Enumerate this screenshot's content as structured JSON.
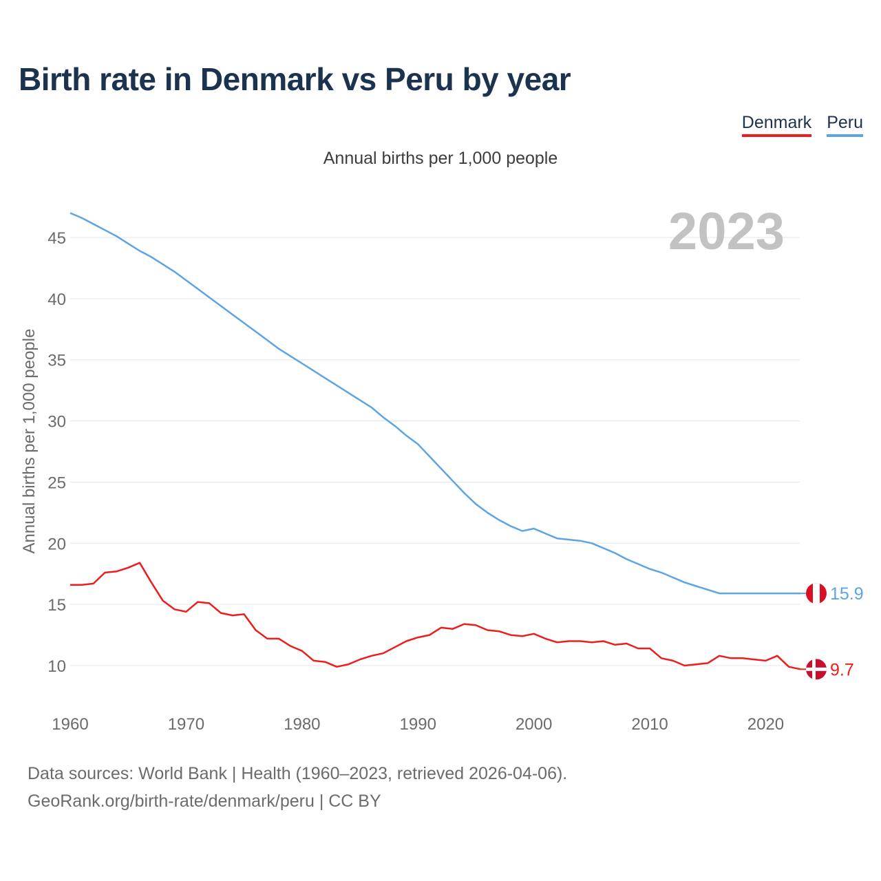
{
  "title": "Birth rate in Denmark vs Peru by year",
  "legend": [
    {
      "label": "Denmark",
      "color": "#ee1c1c"
    },
    {
      "label": "Peru",
      "color": "#5ba4e5"
    }
  ],
  "subtitle": "Annual births per 1,000 people",
  "footer": {
    "line1": "Data sources: World Bank | Health (1960–2023, retrieved 2026-04-06).",
    "line2": "GeoRank.org/birth-rate/denmark/peru | CC BY"
  },
  "chart_data": {
    "type": "line",
    "title": "Birth rate in Denmark vs Peru by year",
    "ylabel": "Annual births per 1,000 people",
    "xlabel": "",
    "current_year_label": "2023",
    "xlim": [
      1960,
      2023
    ],
    "ylim": [
      7,
      48
    ],
    "x_ticks": [
      1960,
      1970,
      1980,
      1990,
      2000,
      2010,
      2020
    ],
    "y_ticks": [
      10,
      15,
      20,
      25,
      30,
      35,
      40,
      45
    ],
    "grid": true,
    "x": [
      1960,
      1961,
      1962,
      1963,
      1964,
      1965,
      1966,
      1967,
      1968,
      1969,
      1970,
      1971,
      1972,
      1973,
      1974,
      1975,
      1976,
      1977,
      1978,
      1979,
      1980,
      1981,
      1982,
      1983,
      1984,
      1985,
      1986,
      1987,
      1988,
      1989,
      1990,
      1991,
      1992,
      1993,
      1994,
      1995,
      1996,
      1997,
      1998,
      1999,
      2000,
      2001,
      2002,
      2003,
      2004,
      2005,
      2006,
      2007,
      2008,
      2009,
      2010,
      2011,
      2012,
      2013,
      2014,
      2015,
      2016,
      2017,
      2018,
      2019,
      2020,
      2021,
      2022,
      2023
    ],
    "series": [
      {
        "name": "Denmark",
        "color": "#ee1c1c",
        "end_label": "9.7",
        "values": [
          16.6,
          16.6,
          16.7,
          17.6,
          17.7,
          18.0,
          18.4,
          16.8,
          15.3,
          14.6,
          14.4,
          15.2,
          15.1,
          14.3,
          14.1,
          14.2,
          12.9,
          12.2,
          12.2,
          11.6,
          11.2,
          10.4,
          10.3,
          9.9,
          10.1,
          10.5,
          10.8,
          11.0,
          11.5,
          12.0,
          12.3,
          12.5,
          13.1,
          13.0,
          13.4,
          13.3,
          12.9,
          12.8,
          12.5,
          12.4,
          12.6,
          12.2,
          11.9,
          12.0,
          12.0,
          11.9,
          12.0,
          11.7,
          11.8,
          11.4,
          11.4,
          10.6,
          10.4,
          10.0,
          10.1,
          10.2,
          10.8,
          10.6,
          10.6,
          10.5,
          10.4,
          10.8,
          9.9,
          9.7
        ]
      },
      {
        "name": "Peru",
        "color": "#5ba4e5",
        "end_label": "15.9",
        "values": [
          47.0,
          46.6,
          46.1,
          45.6,
          45.1,
          44.5,
          43.9,
          43.4,
          42.8,
          42.2,
          41.5,
          40.8,
          40.1,
          39.4,
          38.7,
          38.0,
          37.3,
          36.6,
          35.9,
          35.3,
          34.7,
          34.1,
          33.5,
          32.9,
          32.3,
          31.7,
          31.1,
          30.3,
          29.6,
          28.8,
          28.1,
          27.1,
          26.1,
          25.1,
          24.1,
          23.2,
          22.5,
          21.9,
          21.4,
          21.0,
          21.2,
          20.8,
          20.4,
          20.3,
          20.2,
          20.0,
          19.6,
          19.2,
          18.7,
          18.3,
          17.9,
          17.6,
          17.2,
          16.8,
          16.5,
          16.2,
          15.9,
          15.9,
          15.9,
          15.9,
          15.9,
          15.9,
          15.9,
          15.9
        ]
      }
    ]
  }
}
